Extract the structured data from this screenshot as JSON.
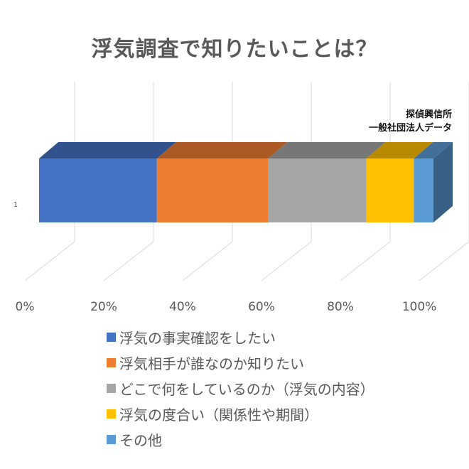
{
  "chart_data": {
    "type": "bar",
    "orientation": "horizontal",
    "stacked": "100%",
    "style": "3d",
    "title": "浮気調査で知りたいことは？",
    "source": [
      "探偵興信所",
      "一般社団法人データ"
    ],
    "categories": [
      "1"
    ],
    "series": [
      {
        "name": "浮気の事実確認をしたい",
        "color": "#4472C4",
        "values": [
          0.36
        ]
      },
      {
        "name": "浮気相手が誰なのか知りたい",
        "color": "#ED7D31",
        "values": [
          0.34
        ]
      },
      {
        "name": "どこで何をしているのか（浮気の内容）",
        "color": "#A5A5A5",
        "values": [
          0.3
        ]
      },
      {
        "name": "浮気の度合い（関係性や期間）",
        "color": "#FFC000",
        "values": [
          0.145
        ]
      },
      {
        "name": "その他",
        "color": "#5B9BD5",
        "values": [
          0.06
        ]
      }
    ],
    "xlim": [
      0,
      1
    ],
    "x_ticks": [
      "0%",
      "20%",
      "40%",
      "60%",
      "80%",
      "100%"
    ],
    "grid": true,
    "legend_position": "bottom"
  }
}
